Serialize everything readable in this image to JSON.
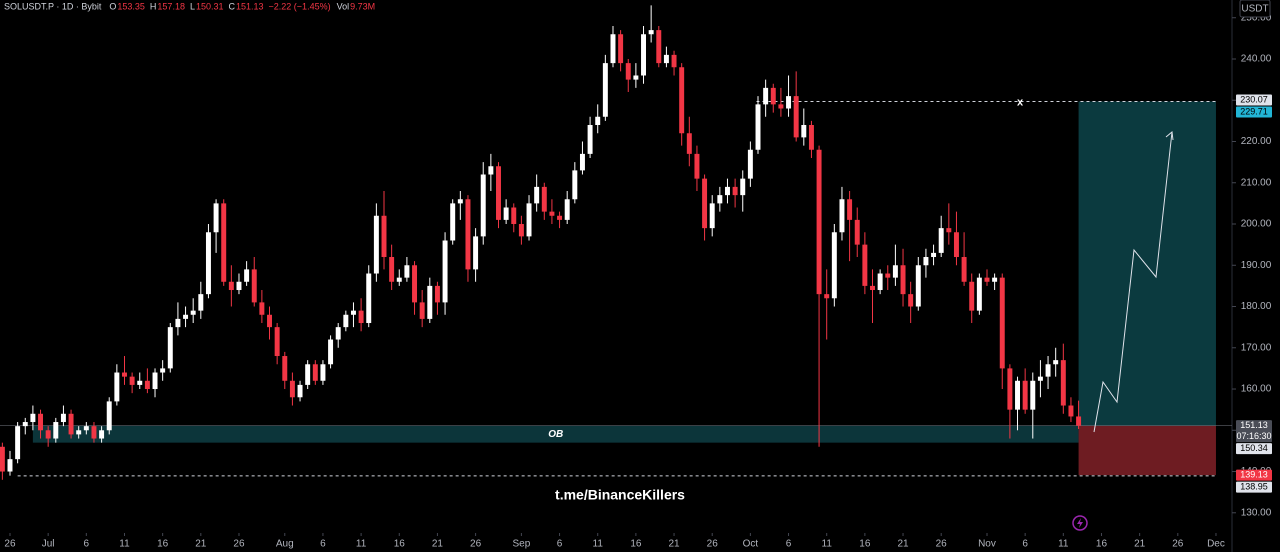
{
  "chart_data": {
    "type": "candlestick",
    "header": {
      "symbol": "SOLUSDT.P · 1D · Bybit",
      "fields": [
        {
          "key": "O",
          "value": 153.35
        },
        {
          "key": "H",
          "value": 157.18
        },
        {
          "key": "L",
          "value": 150.31
        },
        {
          "key": "C",
          "value": 151.13
        }
      ],
      "change": "−2.22 (−1.45%)",
      "volume_key": "Vol",
      "volume": "9.73M"
    },
    "currency": "USDT",
    "watermark": "t.me/BinanceKillers",
    "up_color": "#ffffff",
    "down_color": "#f23645",
    "ylim": [
      125.1,
      254.3
    ],
    "yticks": [
      {
        "value": 130,
        "label": "130.00"
      },
      {
        "value": 140,
        "label": "140.00"
      },
      {
        "value": 150,
        "label": "150.00"
      },
      {
        "value": 160,
        "label": "160.00"
      },
      {
        "value": 170,
        "label": "170.00"
      },
      {
        "value": 180,
        "label": "180.00"
      },
      {
        "value": 190,
        "label": "190.00"
      },
      {
        "value": 200,
        "label": "200.00"
      },
      {
        "value": 210,
        "label": "210.00"
      },
      {
        "value": 220,
        "label": "220.00"
      },
      {
        "value": 230,
        "label": "230.00"
      },
      {
        "value": 240,
        "label": "240.00"
      },
      {
        "value": 250,
        "label": "250.00"
      }
    ],
    "xlim": [
      -0.31,
      161.1
    ],
    "xticks": [
      {
        "value": 1,
        "label": "26"
      },
      {
        "value": 6,
        "label": "Jul"
      },
      {
        "value": 11,
        "label": "6"
      },
      {
        "value": 16,
        "label": "11"
      },
      {
        "value": 21,
        "label": "16"
      },
      {
        "value": 26,
        "label": "21"
      },
      {
        "value": 31,
        "label": "26"
      },
      {
        "value": 37,
        "label": "Aug"
      },
      {
        "value": 42,
        "label": "6"
      },
      {
        "value": 47,
        "label": "11"
      },
      {
        "value": 52,
        "label": "16"
      },
      {
        "value": 57,
        "label": "21"
      },
      {
        "value": 62,
        "label": "26"
      },
      {
        "value": 68,
        "label": "Sep"
      },
      {
        "value": 73,
        "label": "6"
      },
      {
        "value": 78,
        "label": "11"
      },
      {
        "value": 83,
        "label": "16"
      },
      {
        "value": 88,
        "label": "21"
      },
      {
        "value": 93,
        "label": "26"
      },
      {
        "value": 98,
        "label": "Oct"
      },
      {
        "value": 103,
        "label": "6"
      },
      {
        "value": 108,
        "label": "11"
      },
      {
        "value": 113,
        "label": "16"
      },
      {
        "value": 118,
        "label": "21"
      },
      {
        "value": 123,
        "label": "26"
      },
      {
        "value": 129,
        "label": "Nov"
      },
      {
        "value": 134,
        "label": "6"
      },
      {
        "value": 139,
        "label": "11"
      },
      {
        "value": 144,
        "label": "16"
      },
      {
        "value": 149,
        "label": "21"
      },
      {
        "value": 154,
        "label": "26"
      },
      {
        "value": 159,
        "label": "Dec"
      }
    ],
    "candles": [
      [
        146,
        147,
        138,
        140
      ],
      [
        140,
        145,
        139,
        143
      ],
      [
        143,
        152,
        142,
        151
      ],
      [
        151,
        153,
        149,
        152
      ],
      [
        152,
        156,
        150,
        154
      ],
      [
        154,
        155,
        148,
        150
      ],
      [
        150,
        151,
        146,
        148
      ],
      [
        148,
        153,
        147,
        152
      ],
      [
        152,
        156,
        151,
        154
      ],
      [
        154,
        155,
        148,
        149
      ],
      [
        149,
        151,
        148,
        150
      ],
      [
        150,
        152,
        149,
        151
      ],
      [
        151,
        152,
        147,
        148
      ],
      [
        148,
        151,
        147,
        150
      ],
      [
        150,
        158,
        149,
        157
      ],
      [
        157,
        166,
        156,
        164
      ],
      [
        164,
        168,
        161,
        163
      ],
      [
        163,
        164,
        159,
        161
      ],
      [
        161,
        164,
        160,
        162
      ],
      [
        162,
        165,
        159,
        160
      ],
      [
        160,
        165,
        158,
        164
      ],
      [
        164,
        167,
        162,
        165
      ],
      [
        165,
        176,
        164,
        175
      ],
      [
        175,
        181,
        173,
        177
      ],
      [
        177,
        180,
        175,
        178
      ],
      [
        178,
        182,
        176,
        179
      ],
      [
        179,
        186,
        177,
        183
      ],
      [
        183,
        200,
        182,
        198
      ],
      [
        198,
        206,
        193,
        205
      ],
      [
        205,
        206,
        185,
        186
      ],
      [
        186,
        190,
        180,
        184
      ],
      [
        184,
        188,
        183,
        186
      ],
      [
        186,
        191,
        185,
        189
      ],
      [
        189,
        192,
        180,
        181
      ],
      [
        181,
        184,
        176,
        178
      ],
      [
        178,
        180,
        172,
        175
      ],
      [
        175,
        176,
        166,
        168
      ],
      [
        168,
        169,
        160,
        162
      ],
      [
        162,
        164,
        156,
        158
      ],
      [
        158,
        162,
        157,
        161
      ],
      [
        161,
        167,
        160,
        166
      ],
      [
        166,
        167,
        161,
        162
      ],
      [
        162,
        167,
        161,
        166
      ],
      [
        166,
        173,
        165,
        172
      ],
      [
        172,
        176,
        170,
        175
      ],
      [
        175,
        179,
        174,
        178
      ],
      [
        178,
        181,
        175,
        179
      ],
      [
        179,
        182,
        174,
        176
      ],
      [
        176,
        190,
        175,
        188
      ],
      [
        188,
        205,
        186,
        202
      ],
      [
        202,
        208,
        189,
        192
      ],
      [
        192,
        195,
        184,
        186
      ],
      [
        186,
        189,
        185,
        187
      ],
      [
        187,
        192,
        186,
        190
      ],
      [
        190,
        191,
        178,
        181
      ],
      [
        181,
        184,
        175,
        177
      ],
      [
        177,
        187,
        176,
        185
      ],
      [
        185,
        186,
        178,
        181
      ],
      [
        181,
        198,
        178,
        196
      ],
      [
        196,
        206,
        195,
        205
      ],
      [
        205,
        208,
        201,
        206
      ],
      [
        206,
        207,
        186,
        189
      ],
      [
        189,
        199,
        186,
        197
      ],
      [
        197,
        215,
        195,
        212
      ],
      [
        212,
        217,
        208,
        214
      ],
      [
        214,
        215,
        199,
        201
      ],
      [
        201,
        206,
        200,
        204
      ],
      [
        204,
        205,
        198,
        200
      ],
      [
        200,
        202,
        195,
        197
      ],
      [
        197,
        207,
        196,
        205
      ],
      [
        205,
        212,
        203,
        209
      ],
      [
        209,
        210,
        201,
        203
      ],
      [
        203,
        206,
        200,
        202
      ],
      [
        202,
        203,
        199,
        201
      ],
      [
        201,
        208,
        200,
        206
      ],
      [
        206,
        215,
        205,
        213
      ],
      [
        213,
        220,
        212,
        217
      ],
      [
        217,
        226,
        216,
        224
      ],
      [
        224,
        229,
        222,
        226
      ],
      [
        226,
        241,
        225,
        239
      ],
      [
        239,
        248,
        238,
        246
      ],
      [
        246,
        247,
        237,
        239
      ],
      [
        239,
        240,
        232,
        235
      ],
      [
        235,
        239,
        233,
        236
      ],
      [
        236,
        248,
        234,
        246
      ],
      [
        246,
        253,
        244,
        247
      ],
      [
        247,
        248,
        238,
        239
      ],
      [
        239,
        243,
        238,
        241
      ],
      [
        241,
        242,
        236,
        238
      ],
      [
        238,
        239,
        219,
        222
      ],
      [
        222,
        226,
        214,
        217
      ],
      [
        217,
        219,
        208,
        211
      ],
      [
        211,
        212,
        196,
        199
      ],
      [
        199,
        207,
        197,
        205
      ],
      [
        205,
        209,
        203,
        207
      ],
      [
        207,
        211,
        205,
        209
      ],
      [
        209,
        211,
        204,
        207
      ],
      [
        207,
        213,
        203,
        211
      ],
      [
        211,
        220,
        209,
        218
      ],
      [
        218,
        231,
        217,
        229
      ],
      [
        229,
        235,
        226,
        233
      ],
      [
        233,
        234,
        227,
        229
      ],
      [
        229,
        233,
        226,
        228
      ],
      [
        228,
        236,
        226,
        231
      ],
      [
        231,
        237,
        220,
        221
      ],
      [
        221,
        228,
        219,
        224
      ],
      [
        224,
        225,
        216,
        218
      ],
      [
        218,
        219,
        146,
        183
      ],
      [
        183,
        189,
        172,
        182
      ],
      [
        182,
        200,
        180,
        198
      ],
      [
        198,
        209,
        196,
        206
      ],
      [
        206,
        208,
        191,
        201
      ],
      [
        201,
        204,
        192,
        195
      ],
      [
        195,
        198,
        183,
        185
      ],
      [
        185,
        189,
        176,
        184
      ],
      [
        184,
        189,
        183,
        188
      ],
      [
        188,
        190,
        184,
        187
      ],
      [
        187,
        195,
        185,
        190
      ],
      [
        190,
        194,
        180,
        183
      ],
      [
        183,
        186,
        176,
        180
      ],
      [
        180,
        192,
        179,
        190
      ],
      [
        190,
        194,
        187,
        192
      ],
      [
        192,
        195,
        190,
        193
      ],
      [
        193,
        202,
        192,
        199
      ],
      [
        199,
        205,
        195,
        198
      ],
      [
        198,
        203,
        190,
        192
      ],
      [
        192,
        198,
        185,
        186
      ],
      [
        186,
        188,
        176,
        179
      ],
      [
        179,
        188,
        178,
        187
      ],
      [
        187,
        189,
        185,
        186
      ],
      [
        186,
        188,
        184,
        187
      ],
      [
        187,
        188,
        160,
        165
      ],
      [
        165,
        166,
        148,
        155
      ],
      [
        155,
        163,
        150,
        162
      ],
      [
        162,
        165,
        154,
        155
      ],
      [
        155,
        164,
        148,
        162
      ],
      [
        162,
        167,
        158,
        163
      ],
      [
        163,
        168,
        160,
        166
      ],
      [
        166,
        170,
        163,
        167
      ],
      [
        167,
        171,
        154,
        156
      ],
      [
        156,
        158,
        152,
        153.35
      ],
      [
        153.35,
        157.18,
        150.31,
        151.13
      ]
    ],
    "ob_zone": {
      "label": "OB",
      "range": [
        147.0,
        151.1
      ],
      "x_range": [
        4,
        141
      ]
    },
    "position": {
      "x_range": [
        141,
        159
      ],
      "entry": 151.13,
      "target": 229.71,
      "stop": 139.13
    },
    "target_line": {
      "value": 229.71,
      "x_range": [
        98.8,
        159
      ],
      "marker": "x"
    },
    "low_line": {
      "value": 138.95,
      "x_range": [
        2,
        159
      ]
    },
    "price_tags": [
      {
        "value": 230.07,
        "style": "light"
      },
      {
        "value": 229.71,
        "style": "cyan"
      },
      {
        "value": 151.13,
        "style": "gray"
      },
      {
        "value": 150.34,
        "style": "light"
      },
      {
        "value": 139.13,
        "style": "red"
      },
      {
        "value": 138.95,
        "style": "light"
      }
    ],
    "countdown": "07:16:30"
  }
}
